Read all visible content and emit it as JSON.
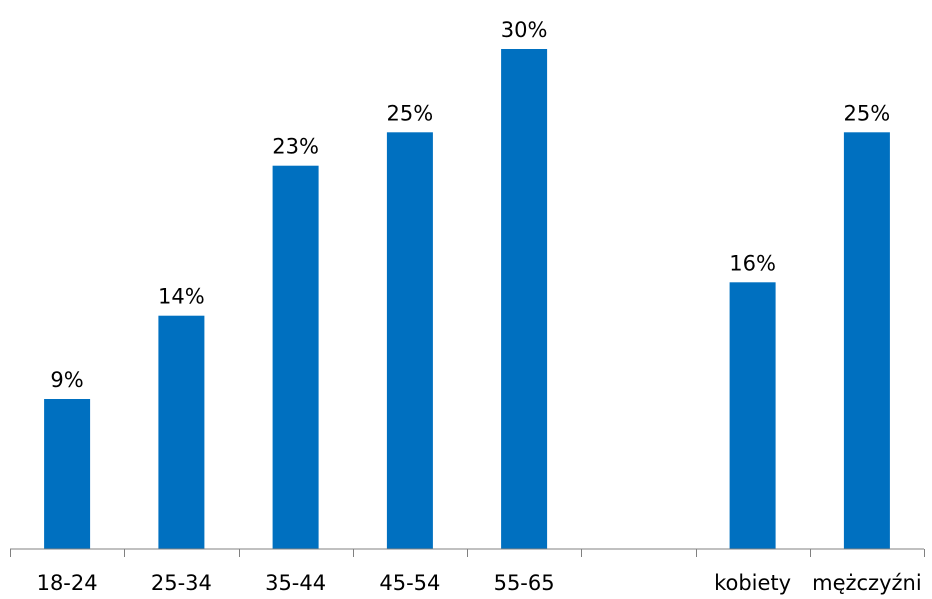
{
  "chart_data": {
    "type": "bar",
    "title": "",
    "xlabel": "",
    "ylabel": "",
    "ylim": [
      0,
      30
    ],
    "grid": false,
    "legend": "none",
    "bar_color": "#0070c0",
    "axis_color": "#808080",
    "categories": [
      "18-24",
      "25-34",
      "35-44",
      "45-54",
      "55-65",
      "",
      "kobiety",
      "mężczyźni"
    ],
    "values": [
      9,
      14,
      23,
      25,
      30,
      null,
      16,
      25
    ],
    "data_labels": [
      "9%",
      "14%",
      "23%",
      "25%",
      "30%",
      "",
      "16%",
      "25%"
    ]
  }
}
